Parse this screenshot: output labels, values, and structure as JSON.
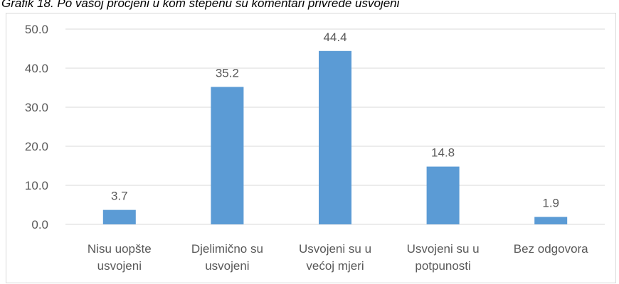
{
  "chart_data": {
    "type": "bar",
    "title": "Grafik 18. Po vašoj procjeni u kom stepenu su komentari privrede usvojeni",
    "categories": [
      "Nisu uopšte\nusvojeni",
      "Djelimično su\nusvojeni",
      "Usvojeni su u\nvećoj mjeri",
      "Usvojeni su u\npotpunosti",
      "Bez odgovora"
    ],
    "values": [
      3.7,
      35.2,
      44.4,
      14.8,
      1.9
    ],
    "color": "#5b9bd5",
    "ylim": [
      0,
      50
    ],
    "yticks": [
      {
        "value": 0,
        "label": "0.0"
      },
      {
        "value": 10,
        "label": "10.0"
      },
      {
        "value": 20,
        "label": "20.0"
      },
      {
        "value": 30,
        "label": "30.0"
      },
      {
        "value": 40,
        "label": "40.0"
      },
      {
        "value": 50,
        "label": "50.0"
      }
    ],
    "grid": true
  }
}
